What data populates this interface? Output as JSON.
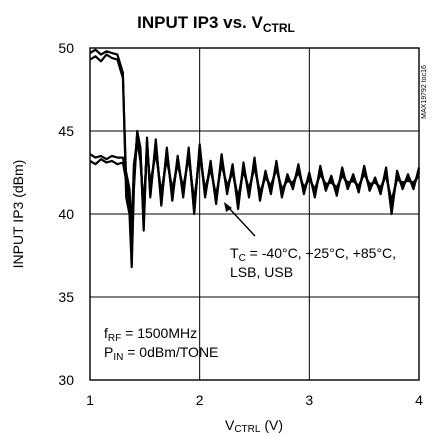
{
  "chart_data": {
    "type": "line",
    "title": "INPUT IP3 vs. V",
    "title_sub": "CTRL",
    "ylabel": "INPUT IP3 (dBm)",
    "xlabel_main": "V",
    "xlabel_sub": "CTRL",
    "xlabel_unit": " (V)",
    "xlim": [
      1,
      4
    ],
    "ylim": [
      30,
      50
    ],
    "xticks": [
      "1",
      "2",
      "3",
      "4"
    ],
    "yticks": [
      "30",
      "35",
      "40",
      "45",
      "50"
    ],
    "grid": true,
    "watermark": "MAX19792 toc16",
    "annotations": {
      "temp_line1_main": "T",
      "temp_line1_sub": "C",
      "temp_line1_rest": " = -40°C, +25°C, +85°C,",
      "temp_line2": "LSB, USB",
      "rf_main": "f",
      "rf_sub": "RF",
      "rf_rest": " = 1500MHz",
      "pin_main": "P",
      "pin_sub": "IN",
      "pin_rest": " = 0dBm/TONE"
    },
    "series": [
      {
        "x": [
          1.0,
          1.05,
          1.1,
          1.15,
          1.2,
          1.25,
          1.3,
          1.33,
          1.36,
          1.38,
          1.4,
          1.43,
          1.46,
          1.49,
          1.52,
          1.55,
          1.6,
          1.65,
          1.7,
          1.75,
          1.8,
          1.85,
          1.9,
          1.95,
          2.0,
          2.05,
          2.1,
          2.15,
          2.2,
          2.25,
          2.3,
          2.35,
          2.4,
          2.45,
          2.5,
          2.55,
          2.6,
          2.65,
          2.7,
          2.75,
          2.8,
          2.85,
          2.9,
          2.95,
          3.0,
          3.05,
          3.1,
          3.15,
          3.2,
          3.25,
          3.3,
          3.35,
          3.4,
          3.45,
          3.5,
          3.55,
          3.6,
          3.65,
          3.7,
          3.75,
          3.8,
          3.85,
          3.9,
          3.95,
          4.0
        ],
        "values": [
          49.7,
          49.9,
          49.6,
          49.8,
          49.7,
          49.6,
          48.5,
          41.0,
          40.0,
          36.8,
          41.5,
          45.0,
          44.0,
          39.0,
          44.6,
          41.0,
          44.5,
          40.5,
          44.0,
          40.8,
          43.5,
          41.0,
          44.0,
          40.0,
          44.2,
          41.0,
          43.2,
          40.6,
          43.6,
          41.2,
          43.0,
          40.3,
          43.1,
          41.0,
          43.4,
          40.8,
          42.6,
          41.2,
          43.2,
          41.0,
          42.4,
          41.5,
          43.0,
          41.2,
          42.5,
          41.0,
          42.9,
          41.4,
          42.3,
          41.1,
          42.8,
          41.5,
          42.4,
          41.3,
          42.9,
          41.4,
          42.2,
          41.2,
          42.8,
          40.0,
          42.6,
          41.5,
          42.4,
          41.5,
          42.8
        ]
      },
      {
        "x": [
          1.0,
          1.05,
          1.1,
          1.15,
          1.2,
          1.25,
          1.3,
          1.33,
          1.36,
          1.38,
          1.4,
          1.43,
          1.46,
          1.49,
          1.52,
          1.55,
          1.6,
          1.65,
          1.7,
          1.75,
          1.8,
          1.85,
          1.9,
          1.95,
          2.0,
          2.05,
          2.1,
          2.15,
          2.2,
          2.25,
          2.3,
          2.35,
          2.4,
          2.45,
          2.5,
          2.55,
          2.6,
          2.65,
          2.7,
          2.75,
          2.8,
          2.85,
          2.9,
          2.95,
          3.0,
          3.05,
          3.1,
          3.15,
          3.2,
          3.25,
          3.3,
          3.35,
          3.4,
          3.45,
          3.5,
          3.55,
          3.6,
          3.65,
          3.7,
          3.75,
          3.8,
          3.85,
          3.9,
          3.95,
          4.0
        ],
        "values": [
          49.3,
          49.5,
          49.2,
          49.6,
          49.4,
          49.3,
          48.2,
          42.0,
          40.5,
          38.5,
          42.0,
          44.6,
          43.5,
          40.0,
          44.2,
          41.5,
          44.0,
          41.0,
          43.6,
          41.2,
          43.2,
          41.4,
          43.6,
          40.5,
          43.8,
          41.3,
          42.9,
          40.9,
          43.2,
          41.5,
          42.7,
          40.8,
          42.8,
          41.3,
          43.0,
          41.1,
          42.4,
          41.5,
          42.9,
          41.3,
          42.2,
          41.7,
          42.7,
          41.4,
          42.3,
          41.3,
          42.6,
          41.6,
          42.1,
          41.4,
          42.5,
          41.7,
          42.2,
          41.5,
          42.6,
          41.6,
          42.0,
          41.4,
          42.5,
          40.5,
          42.3,
          41.7,
          42.2,
          41.7,
          42.5
        ]
      },
      {
        "x": [
          1.0,
          1.05,
          1.1,
          1.15,
          1.2,
          1.25,
          1.3,
          1.33,
          1.36,
          1.38,
          1.4,
          1.43,
          1.46,
          1.49,
          1.52,
          1.55,
          1.6,
          1.65,
          1.7,
          1.75,
          1.8,
          1.85,
          1.9,
          1.95,
          2.0,
          2.05,
          2.1,
          2.15,
          2.2,
          2.25,
          2.3,
          2.35,
          2.4,
          2.45,
          2.5,
          2.55,
          2.6,
          2.65,
          2.7,
          2.75,
          2.8,
          2.85,
          2.9,
          2.95,
          3.0,
          3.05,
          3.1,
          3.15,
          3.2,
          3.25,
          3.3,
          3.35,
          3.4,
          3.45,
          3.5,
          3.55,
          3.6,
          3.65,
          3.7,
          3.75,
          3.8,
          3.85,
          3.9,
          3.95,
          4.0
        ],
        "values": [
          43.2,
          43.0,
          43.3,
          43.1,
          43.2,
          43.0,
          43.1,
          42.0,
          41.0,
          38.0,
          42.5,
          44.8,
          43.8,
          39.5,
          44.4,
          41.2,
          44.2,
          40.8,
          43.8,
          41.0,
          43.4,
          41.2,
          43.8,
          40.2,
          44.0,
          41.1,
          43.0,
          40.7,
          43.4,
          41.3,
          42.8,
          40.5,
          42.9,
          41.1,
          43.2,
          40.9,
          42.5,
          41.3,
          43.0,
          41.1,
          42.3,
          41.6,
          42.8,
          41.3,
          42.4,
          41.1,
          42.7,
          41.5,
          42.2,
          41.2,
          42.6,
          41.6,
          42.3,
          41.4,
          42.7,
          41.5,
          42.1,
          41.3,
          42.6,
          40.2,
          42.4,
          41.6,
          42.3,
          41.6,
          42.6
        ]
      },
      {
        "x": [
          1.0,
          1.05,
          1.1,
          1.15,
          1.2,
          1.25,
          1.3,
          1.33,
          1.36,
          1.38,
          1.4,
          1.43,
          1.46,
          1.49,
          1.52,
          1.55,
          1.6,
          1.65,
          1.7,
          1.75,
          1.8,
          1.85,
          1.9,
          1.95,
          2.0,
          2.05,
          2.1,
          2.15,
          2.2,
          2.25,
          2.3,
          2.35,
          2.4,
          2.45,
          2.5,
          2.55,
          2.6,
          2.65,
          2.7,
          2.75,
          2.8,
          2.85,
          2.9,
          2.95,
          3.0,
          3.05,
          3.1,
          3.15,
          3.2,
          3.25,
          3.3,
          3.35,
          3.4,
          3.45,
          3.5,
          3.55,
          3.6,
          3.65,
          3.7,
          3.75,
          3.8,
          3.85,
          3.9,
          3.95,
          4.0
        ],
        "values": [
          43.6,
          43.4,
          43.5,
          43.3,
          43.5,
          43.4,
          43.4,
          42.5,
          41.5,
          39.0,
          43.0,
          44.4,
          43.2,
          40.5,
          43.9,
          41.8,
          43.7,
          41.3,
          43.3,
          41.5,
          43.0,
          41.6,
          43.4,
          40.8,
          43.5,
          41.5,
          42.7,
          41.1,
          43.0,
          41.7,
          42.5,
          41.0,
          42.6,
          41.5,
          42.8,
          41.3,
          42.2,
          41.7,
          42.7,
          41.5,
          42.0,
          41.9,
          42.5,
          41.6,
          42.1,
          41.5,
          42.4,
          41.8,
          41.9,
          41.6,
          42.3,
          41.9,
          42.0,
          41.7,
          42.4,
          41.8,
          41.9,
          41.6,
          42.3,
          40.8,
          42.1,
          41.9,
          42.0,
          41.9,
          42.3
        ]
      }
    ]
  }
}
